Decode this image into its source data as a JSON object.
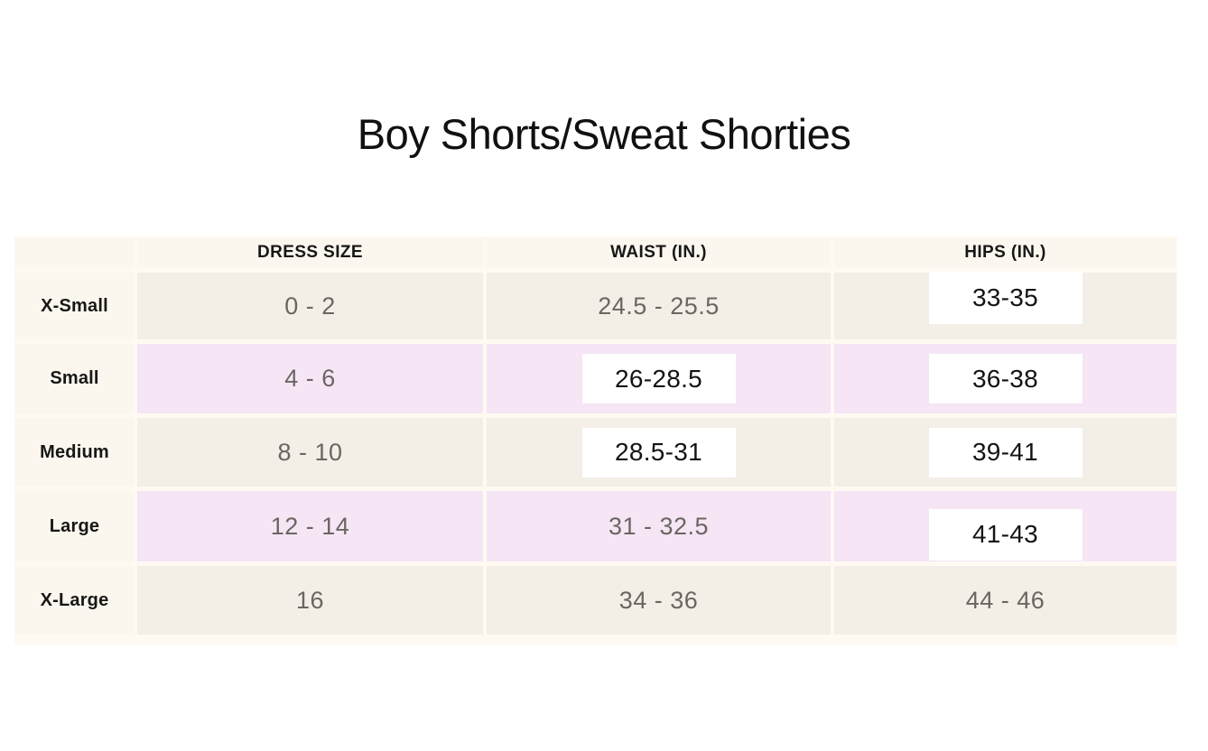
{
  "title": "Boy Shorts/Sweat Shorties",
  "chart_data": {
    "type": "table",
    "title": "Boy Shorts/Sweat Shorties",
    "columns": [
      "",
      "DRESS SIZE",
      "WAIST (IN.)",
      "HIPS (IN.)"
    ],
    "rows": [
      {
        "size": "X-Small",
        "dress_size": "0 - 2",
        "waist_in": "24.5 - 25.5",
        "hips_in": "33-35"
      },
      {
        "size": "Small",
        "dress_size": "4 - 6",
        "waist_in": "26-28.5",
        "hips_in": "36-38"
      },
      {
        "size": "Medium",
        "dress_size": "8 - 10",
        "waist_in": "28.5-31",
        "hips_in": "39-41"
      },
      {
        "size": "Large",
        "dress_size": "12 - 14",
        "waist_in": "31 - 32.5",
        "hips_in": "41-43"
      },
      {
        "size": "X-Large",
        "dress_size": "16",
        "waist_in": "34 - 36",
        "hips_in": "44 - 46"
      }
    ]
  },
  "colors": {
    "table_bg": "#fefaf2",
    "cell_cream": "#fcf7ee",
    "row_beige": "#f3efe7",
    "row_pink": "#f5e5f5",
    "value_gray": "#6a6660",
    "label_black": "#171717",
    "box_white": "#ffffff"
  }
}
